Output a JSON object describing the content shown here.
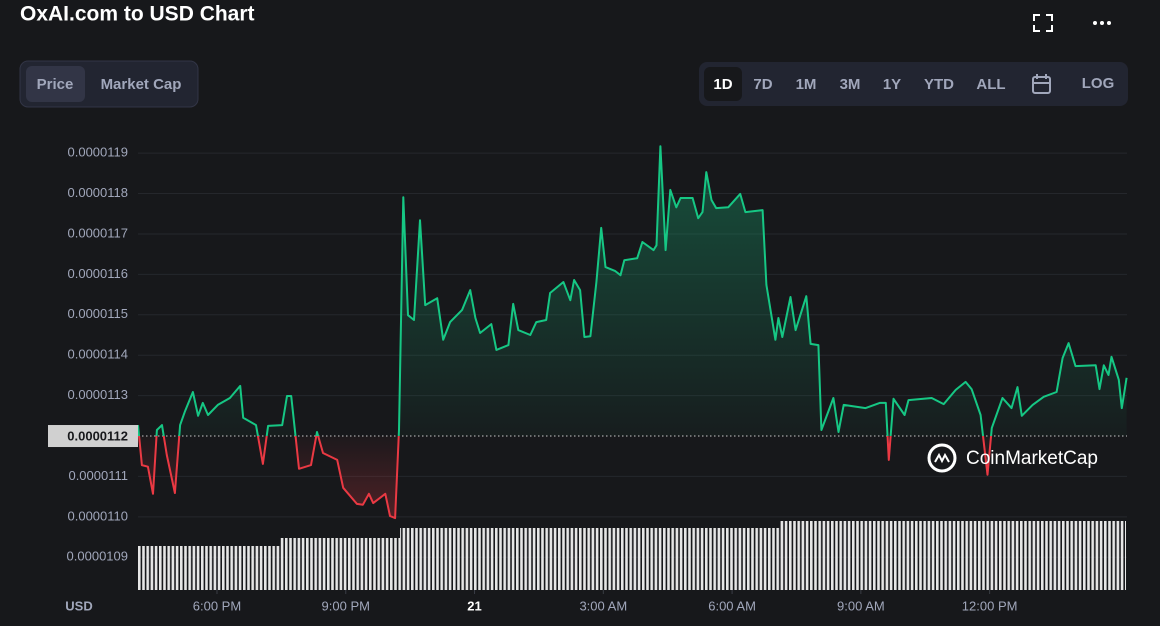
{
  "header": {
    "title": "OxAI.com to USD Chart"
  },
  "tabs": [
    "Price",
    "Market Cap"
  ],
  "ranges": [
    "1D",
    "7D",
    "1M",
    "3M",
    "1Y",
    "YTD",
    "ALL"
  ],
  "log": "LOG",
  "watermark": "CoinMarketCap",
  "chart_data": {
    "type": "line",
    "y_label": "USD",
    "x": [
      16.16,
      16.25,
      16.39,
      16.51,
      16.6,
      16.72,
      16.83,
      17.02,
      17.14,
      17.25,
      17.44,
      17.56,
      17.67,
      17.79,
      18.02,
      18.3,
      18.54,
      18.61,
      18.91,
      19.07,
      19.19,
      19.52,
      19.63,
      19.73,
      19.82,
      19.91,
      20.19,
      20.33,
      20.47,
      20.8,
      20.94,
      21.26,
      21.4,
      21.54,
      21.64,
      21.92,
      22.03,
      22.15,
      22.24,
      22.34,
      22.45,
      22.59,
      22.73,
      22.85,
      23.13,
      23.27,
      23.43,
      23.71,
      23.9,
      24.02,
      24.13,
      24.39,
      24.51,
      24.79,
      24.9,
      25.02,
      25.3,
      25.44,
      25.67,
      25.76,
      26.07,
      26.23,
      26.32,
      26.46,
      26.56,
      26.7,
      26.84,
      26.95,
      27.05,
      27.28,
      27.4,
      27.49,
      27.79,
      27.91,
      28.17,
      28.24,
      28.33,
      28.45,
      28.56,
      28.7,
      28.8,
      29.08,
      29.21,
      29.31,
      29.4,
      29.52,
      29.63,
      29.91,
      30.19,
      30.31,
      30.71,
      30.8,
      31.01,
      31.08,
      31.17,
      31.36,
      31.48,
      31.73,
      31.83,
      32.01,
      32.08,
      32.36,
      32.48,
      32.6,
      33.11,
      33.44,
      33.58,
      33.65,
      33.76,
      34.02,
      34.11,
      34.65,
      34.93,
      35.21,
      35.44,
      35.58,
      35.79,
      35.95,
      36.05,
      36.3,
      36.51,
      36.65,
      36.75,
      37.0,
      37.26,
      37.56,
      37.7,
      37.84,
      38.0,
      38.47,
      38.56,
      38.66,
      38.77,
      38.84,
      39.01,
      39.08,
      39.19
    ],
    "values": [
      1.1227e-05,
      1.1128e-05,
      1.1124e-05,
      1.1057e-05,
      1.1215e-05,
      1.1227e-05,
      1.1153e-05,
      1.1059e-05,
      1.1227e-05,
      1.126e-05,
      1.1309e-05,
      1.125e-05,
      1.1282e-05,
      1.1252e-05,
      1.1277e-05,
      1.1294e-05,
      1.1324e-05,
      1.1245e-05,
      1.1227e-05,
      1.1131e-05,
      1.1225e-05,
      1.1227e-05,
      1.1299e-05,
      1.1299e-05,
      1.121e-05,
      1.1119e-05,
      1.1128e-05,
      1.121e-05,
      1.1158e-05,
      1.1141e-05,
      1.1072e-05,
      1.1032e-05,
      1.103e-05,
      1.1057e-05,
      1.1034e-05,
      1.1057e-05,
      1.1002e-05,
      1.0997e-05,
      1.1215e-05,
      1.1791e-05,
      1.1499e-05,
      1.1487e-05,
      1.1734e-05,
      1.1524e-05,
      1.1541e-05,
      1.1438e-05,
      1.1482e-05,
      1.1512e-05,
      1.1561e-05,
      1.1492e-05,
      1.1455e-05,
      1.1477e-05,
      1.1413e-05,
      1.1425e-05,
      1.1527e-05,
      1.1462e-05,
      1.145e-05,
      1.1482e-05,
      1.1487e-05,
      1.1554e-05,
      1.1581e-05,
      1.1536e-05,
      1.1586e-05,
      1.1561e-05,
      1.1445e-05,
      1.1447e-05,
      1.1581e-05,
      1.1715e-05,
      1.1618e-05,
      1.1608e-05,
      1.1598e-05,
      1.1635e-05,
      1.164e-05,
      1.168e-05,
      1.166e-05,
      1.1672e-05,
      1.1917e-05,
      1.166e-05,
      1.1809e-05,
      1.1766e-05,
      1.1789e-05,
      1.1789e-05,
      1.1739e-05,
      1.1754e-05,
      1.1853e-05,
      1.1784e-05,
      1.1764e-05,
      1.1766e-05,
      1.1799e-05,
      1.1754e-05,
      1.1759e-05,
      1.1574e-05,
      1.1438e-05,
      1.1492e-05,
      1.1445e-05,
      1.1544e-05,
      1.1462e-05,
      1.1546e-05,
      1.1428e-05,
      1.1425e-05,
      1.1215e-05,
      1.1294e-05,
      1.121e-05,
      1.1277e-05,
      1.1269e-05,
      1.1282e-05,
      1.1282e-05,
      1.1141e-05,
      1.1292e-05,
      1.1252e-05,
      1.1289e-05,
      1.1294e-05,
      1.1279e-05,
      1.1314e-05,
      1.1334e-05,
      1.1316e-05,
      1.1252e-05,
      1.1104e-05,
      1.122e-05,
      1.1294e-05,
      1.1269e-05,
      1.1321e-05,
      1.125e-05,
      1.1277e-05,
      1.1297e-05,
      1.1309e-05,
      1.1393e-05,
      1.143e-05,
      1.1373e-05,
      1.1375e-05,
      1.1316e-05,
      1.1375e-05,
      1.1351e-05,
      1.1396e-05,
      1.1339e-05,
      1.1269e-05,
      1.1344e-05
    ],
    "baseline": {
      "value": 1.12e-05,
      "label": "0.0000112"
    },
    "up_color": "#16c784",
    "down_color": "#ea3943",
    "xlim": [
      16.16,
      39.2
    ],
    "xticks": [
      {
        "value": 18,
        "label": "6:00 PM"
      },
      {
        "value": 21,
        "label": "9:00 PM"
      },
      {
        "value": 24,
        "label": "21"
      },
      {
        "value": 27,
        "label": "3:00 AM"
      },
      {
        "value": 30,
        "label": "6:00 AM"
      },
      {
        "value": 33,
        "label": "9:00 AM"
      },
      {
        "value": 36,
        "label": "12:00 PM"
      }
    ],
    "ylim": [
      1.0819e-05,
      1.1977e-05
    ],
    "yticks": [
      {
        "value": 1.09e-05,
        "label": "0.0000109"
      },
      {
        "value": 1.1e-05,
        "label": "0.0000110"
      },
      {
        "value": 1.11e-05,
        "label": "0.0000111"
      },
      {
        "value": 1.13e-05,
        "label": "0.0000113"
      },
      {
        "value": 1.14e-05,
        "label": "0.0000114"
      },
      {
        "value": 1.15e-05,
        "label": "0.0000115"
      },
      {
        "value": 1.16e-05,
        "label": "0.0000116"
      },
      {
        "value": 1.17e-05,
        "label": "0.0000117"
      },
      {
        "value": 1.18e-05,
        "label": "0.0000118"
      },
      {
        "value": 1.19e-05,
        "label": "0.0000119"
      }
    ],
    "grid": true
  }
}
